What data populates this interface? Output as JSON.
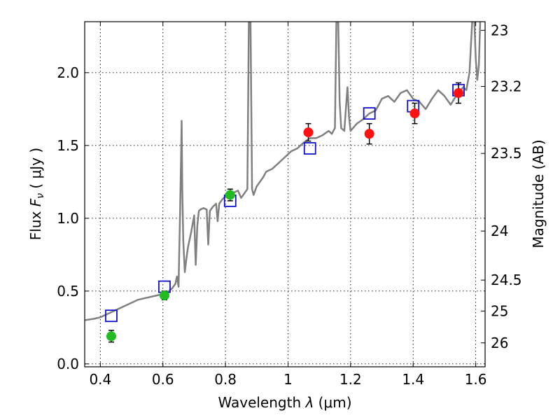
{
  "chart_data": {
    "type": "scatter",
    "xlabel_prefix": "Wavelength ",
    "xlabel_symbol": "λ",
    "xlabel_unit": " (μm)",
    "ylabel_prefix": "Flux ",
    "ylabel_symbol": "F",
    "ylabel_subscript": "ν",
    "ylabel_unit": " ( μJy )",
    "y2label": "Magnitude (AB)",
    "xlim": [
      0.35,
      1.63
    ],
    "ylim": [
      -0.02,
      2.35
    ],
    "grid": true,
    "x_ticks": [
      {
        "value": 0.4,
        "label": "0.4"
      },
      {
        "value": 0.6,
        "label": "0.6"
      },
      {
        "value": 0.8,
        "label": "0.8"
      },
      {
        "value": 1.0,
        "label": "1"
      },
      {
        "value": 1.2,
        "label": "1.2"
      },
      {
        "value": 1.4,
        "label": "1.4"
      },
      {
        "value": 1.6,
        "label": "1.6"
      }
    ],
    "y_ticks": [
      {
        "value": 0.0,
        "label": "0.0"
      },
      {
        "value": 0.5,
        "label": "0.5"
      },
      {
        "value": 1.0,
        "label": "1.0"
      },
      {
        "value": 1.5,
        "label": "1.5"
      },
      {
        "value": 2.0,
        "label": "2.0"
      }
    ],
    "y2_ticks": [
      {
        "mag": 23,
        "label": "23"
      },
      {
        "mag": 23.2,
        "label": "23.2"
      },
      {
        "mag": 23.5,
        "label": "23.5"
      },
      {
        "mag": 24,
        "label": "24"
      },
      {
        "mag": 24.5,
        "label": "24.5"
      },
      {
        "mag": 25,
        "label": "25"
      },
      {
        "mag": 26,
        "label": "26"
      }
    ],
    "colors": {
      "model": "#808080",
      "green_points": "#22bb22",
      "red_points": "#ff1111",
      "model_boxes": "#1111cc",
      "errorbar": "#000000"
    },
    "series": [
      {
        "name": "model spectrum",
        "kind": "line",
        "x": [
          0.35,
          0.38,
          0.4,
          0.42,
          0.44,
          0.46,
          0.48,
          0.5,
          0.52,
          0.54,
          0.56,
          0.58,
          0.6,
          0.62,
          0.63,
          0.64,
          0.645,
          0.65,
          0.652,
          0.655,
          0.658,
          0.66,
          0.662,
          0.665,
          0.67,
          0.675,
          0.68,
          0.69,
          0.7,
          0.705,
          0.71,
          0.715,
          0.72,
          0.73,
          0.74,
          0.745,
          0.75,
          0.76,
          0.77,
          0.775,
          0.78,
          0.79,
          0.8,
          0.81,
          0.82,
          0.83,
          0.84,
          0.85,
          0.86,
          0.87,
          0.875,
          0.88,
          0.885,
          0.89,
          0.895,
          0.9,
          0.91,
          0.92,
          0.93,
          0.95,
          0.97,
          0.99,
          1.01,
          1.03,
          1.05,
          1.07,
          1.09,
          1.11,
          1.13,
          1.14,
          1.15,
          1.155,
          1.16,
          1.165,
          1.17,
          1.18,
          1.185,
          1.19,
          1.195,
          1.2,
          1.22,
          1.24,
          1.26,
          1.28,
          1.29,
          1.3,
          1.32,
          1.34,
          1.36,
          1.38,
          1.4,
          1.42,
          1.44,
          1.46,
          1.48,
          1.5,
          1.52,
          1.54,
          1.56,
          1.57,
          1.58,
          1.59,
          1.595,
          1.6,
          1.605,
          1.61,
          1.615,
          1.62,
          1.63
        ],
        "y": [
          0.3,
          0.31,
          0.32,
          0.34,
          0.36,
          0.38,
          0.4,
          0.42,
          0.44,
          0.45,
          0.46,
          0.47,
          0.48,
          0.5,
          0.52,
          0.55,
          0.6,
          0.53,
          0.75,
          1.05,
          1.4,
          1.67,
          1.2,
          0.85,
          0.63,
          0.72,
          0.8,
          0.9,
          1.02,
          0.68,
          0.95,
          1.05,
          1.06,
          1.07,
          1.06,
          0.82,
          1.05,
          1.08,
          1.1,
          0.98,
          1.1,
          1.13,
          1.15,
          1.16,
          1.17,
          1.18,
          1.19,
          1.14,
          1.17,
          1.2,
          2.4,
          2.4,
          1.2,
          1.16,
          1.19,
          1.22,
          1.25,
          1.28,
          1.32,
          1.34,
          1.38,
          1.42,
          1.46,
          1.48,
          1.52,
          1.55,
          1.55,
          1.57,
          1.6,
          1.58,
          1.62,
          2.4,
          2.4,
          1.8,
          1.62,
          1.6,
          1.75,
          1.9,
          1.7,
          1.6,
          1.65,
          1.68,
          1.72,
          1.74,
          1.78,
          1.82,
          1.84,
          1.8,
          1.86,
          1.88,
          1.82,
          1.8,
          1.75,
          1.82,
          1.88,
          1.84,
          1.78,
          1.85,
          1.9,
          1.88,
          2.0,
          2.4,
          2.4,
          2.1,
          1.95,
          2.05,
          2.4,
          2.4,
          2.4
        ]
      },
      {
        "name": "green photometry",
        "kind": "errorbar",
        "x": [
          0.435,
          0.605,
          0.815
        ],
        "y": [
          0.19,
          0.47,
          1.16
        ],
        "yerr": [
          0.04,
          0.03,
          0.04
        ]
      },
      {
        "name": "red photometry",
        "kind": "errorbar",
        "x": [
          1.065,
          1.26,
          1.405,
          1.545
        ],
        "y": [
          1.59,
          1.58,
          1.72,
          1.86
        ],
        "yerr": [
          0.06,
          0.07,
          0.07,
          0.07
        ]
      },
      {
        "name": "model photometry",
        "kind": "square",
        "x": [
          0.435,
          0.605,
          0.815,
          1.07,
          1.26,
          1.4,
          1.545
        ],
        "y": [
          0.33,
          0.53,
          1.12,
          1.48,
          1.72,
          1.77,
          1.88
        ]
      }
    ]
  }
}
